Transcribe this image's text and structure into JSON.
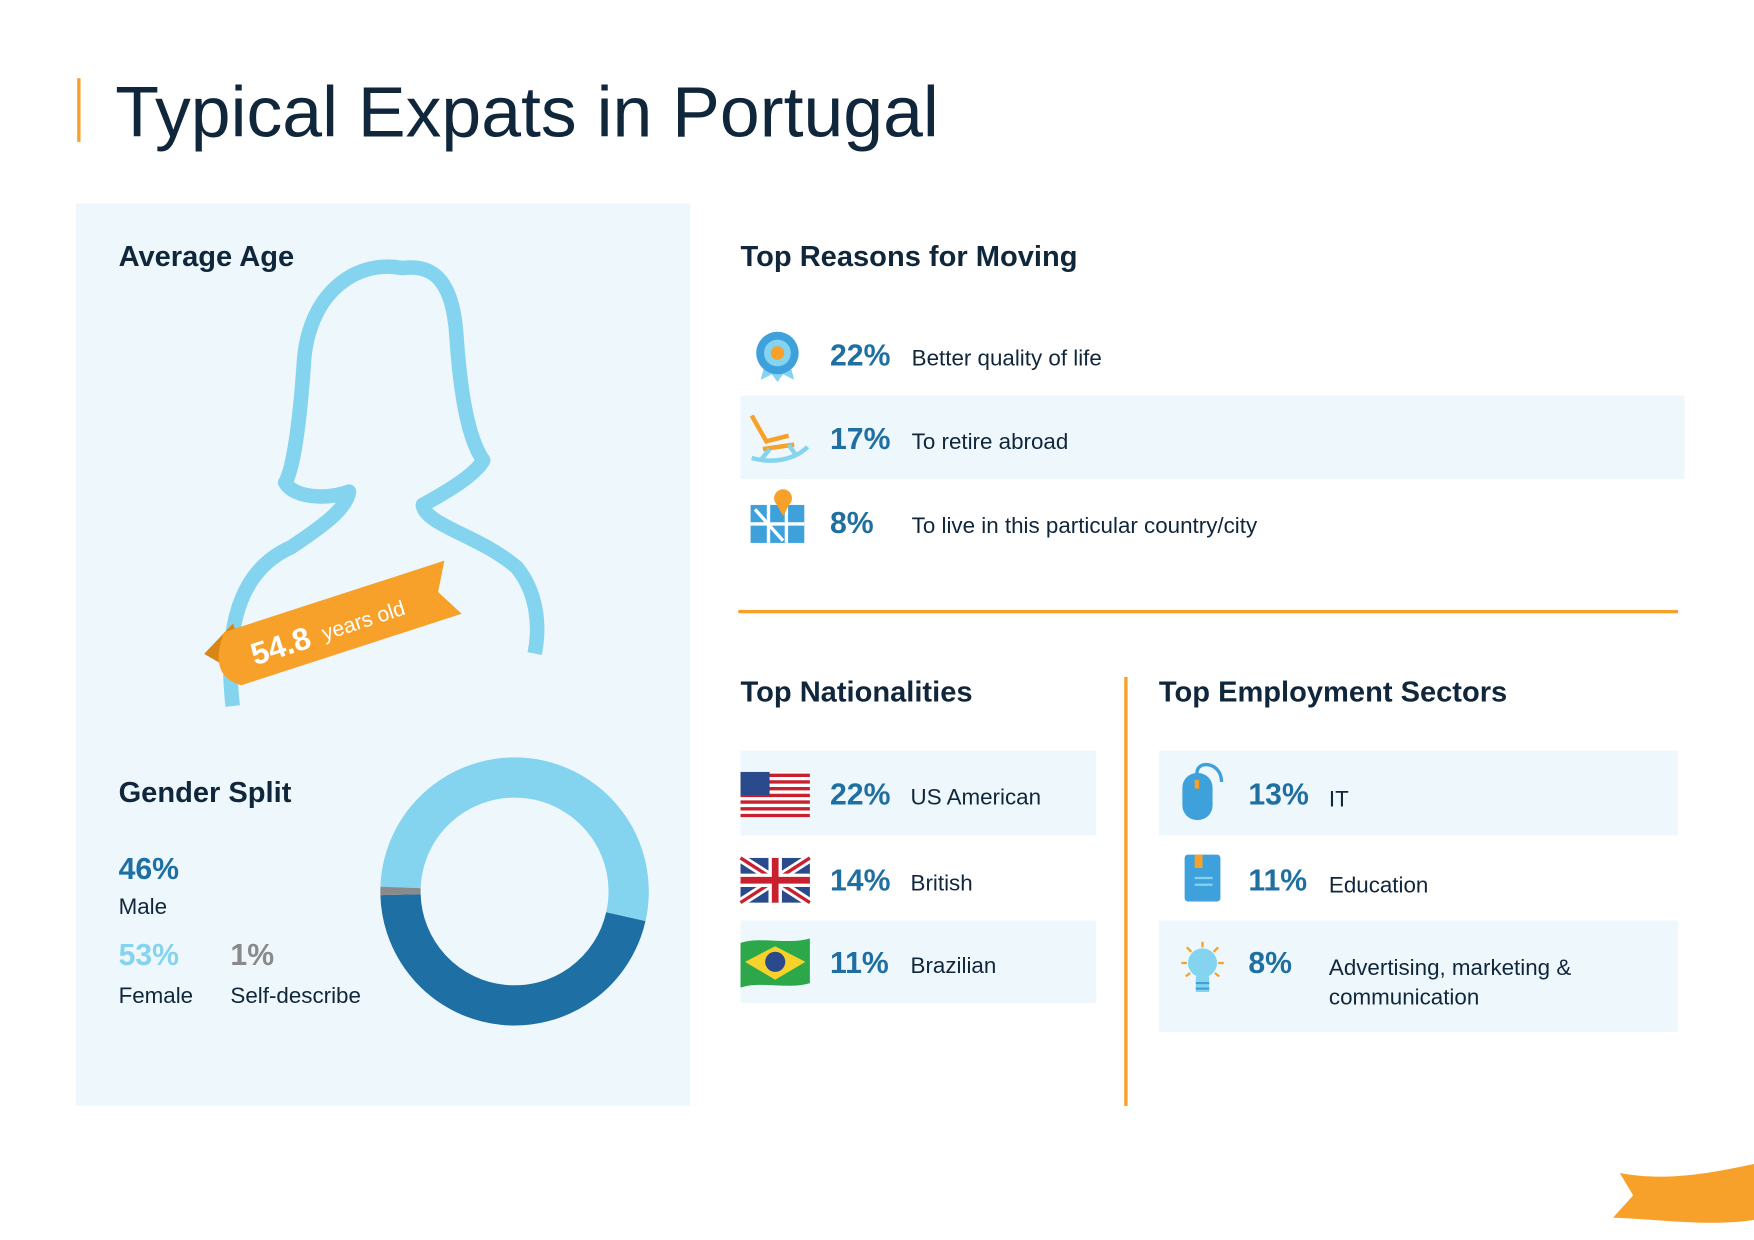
{
  "title": "Typical Expats in Portugal",
  "average_age": {
    "heading": "Average Age",
    "value": "54.8",
    "unit": "years old"
  },
  "gender_split": {
    "heading": "Gender Split",
    "items": [
      {
        "name": "Male",
        "value": 46,
        "label": "46%",
        "color": "#1e6fa3"
      },
      {
        "name": "Female",
        "value": 53,
        "label": "53%",
        "color": "#84d3ef"
      },
      {
        "name": "Self-describe",
        "value": 1,
        "label": "1%",
        "color": "#8a8a8a"
      }
    ]
  },
  "reasons": {
    "heading": "Top Reasons for Moving",
    "items": [
      {
        "percent": "22%",
        "label": "Better quality of life"
      },
      {
        "percent": "17%",
        "label": "To retire abroad"
      },
      {
        "percent": "8%",
        "label": "To live in this particular country/city"
      }
    ]
  },
  "nationalities": {
    "heading": "Top Nationalities",
    "items": [
      {
        "percent": "22%",
        "label": "US American"
      },
      {
        "percent": "14%",
        "label": "British"
      },
      {
        "percent": "11%",
        "label": "Brazilian"
      }
    ]
  },
  "sectors": {
    "heading": "Top Employment Sectors",
    "items": [
      {
        "percent": "13%",
        "label": [
          "IT"
        ]
      },
      {
        "percent": "11%",
        "label": [
          "Education"
        ]
      },
      {
        "percent": "8%",
        "label": [
          "Advertising, marketing &",
          "communication"
        ]
      }
    ]
  }
}
